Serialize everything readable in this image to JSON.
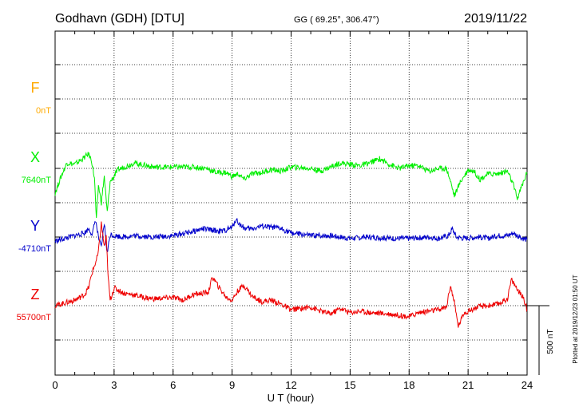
{
  "header": {
    "station": "Godhavn (GDH)  [DTU]",
    "coords": "GG ( 69.25°, 306.47°)",
    "date": "2019/11/22"
  },
  "footer": {
    "plotted": "Plotted at 2019/12/23 01:50 UT"
  },
  "chart_data": {
    "type": "line",
    "xlabel": "U T (hour)",
    "xlim": [
      0,
      24
    ],
    "xticks": [
      0,
      3,
      6,
      9,
      12,
      15,
      18,
      21,
      24
    ],
    "scale_label": "500 nT",
    "scale_nT": 500,
    "panel_height_nT": 1500,
    "grid": true,
    "series": [
      {
        "name": "F",
        "baseline_label": "0nT",
        "color": "#ffaa00",
        "x": [],
        "y": []
      },
      {
        "name": "X",
        "baseline_label": "7640nT",
        "color": "#00ee00",
        "x": [
          0,
          0.3,
          0.6,
          1.0,
          1.4,
          1.7,
          1.85,
          2.0,
          2.1,
          2.2,
          2.35,
          2.5,
          2.65,
          2.8,
          3.2,
          4.0,
          5.0,
          6.0,
          7.0,
          7.7,
          8.2,
          8.7,
          9.0,
          9.3,
          9.6,
          10.0,
          10.5,
          11.0,
          11.5,
          12.0,
          13.0,
          13.5,
          14.0,
          14.5,
          15.0,
          15.5,
          16.0,
          16.5,
          17.0,
          17.5,
          18.0,
          18.5,
          19.0,
          19.5,
          19.9,
          20.1,
          20.3,
          20.6,
          21.0,
          21.3,
          21.6,
          22.0,
          22.5,
          23.0,
          23.3,
          23.5,
          23.7,
          24.0
        ],
        "y": [
          -180,
          -60,
          40,
          30,
          70,
          105,
          60,
          -70,
          -380,
          -120,
          -250,
          -60,
          -320,
          -100,
          -10,
          40,
          10,
          10,
          10,
          0,
          -30,
          -30,
          -60,
          -40,
          -80,
          -40,
          -30,
          -10,
          -20,
          10,
          0,
          -20,
          10,
          40,
          30,
          20,
          40,
          70,
          30,
          0,
          20,
          20,
          -20,
          0,
          0,
          -90,
          -200,
          -100,
          -10,
          -20,
          -80,
          -40,
          -40,
          -20,
          -120,
          -220,
          -140,
          -30
        ]
      },
      {
        "name": "Y",
        "baseline_label": "-4710nT",
        "color": "#0000cc",
        "x": [
          0,
          0.5,
          1.0,
          1.5,
          1.7,
          1.9,
          2.05,
          2.2,
          2.35,
          2.5,
          2.65,
          2.8,
          3.0,
          3.5,
          4.0,
          5.0,
          6.0,
          7.0,
          7.5,
          8.0,
          8.5,
          9.0,
          9.2,
          9.4,
          9.7,
          10.0,
          10.5,
          11.0,
          11.5,
          12.0,
          12.5,
          13.0,
          14.0,
          15.0,
          16.0,
          17.0,
          18.0,
          19.0,
          19.5,
          20.0,
          20.2,
          20.4,
          20.8,
          21.5,
          22.0,
          22.5,
          23.0,
          23.3,
          23.6,
          24.0
        ],
        "y": [
          -30,
          -10,
          10,
          30,
          60,
          20,
          130,
          0,
          -80,
          100,
          -120,
          20,
          10,
          0,
          10,
          0,
          10,
          40,
          60,
          50,
          40,
          70,
          130,
          90,
          60,
          60,
          80,
          70,
          60,
          30,
          20,
          10,
          10,
          -10,
          0,
          -10,
          -10,
          0,
          -10,
          10,
          60,
          0,
          -10,
          0,
          -10,
          10,
          10,
          30,
          0,
          -20
        ]
      },
      {
        "name": "Z",
        "baseline_label": "55700nT",
        "color": "#ee0000",
        "x": [
          0,
          0.5,
          1.0,
          1.5,
          1.7,
          1.9,
          2.1,
          2.2,
          2.35,
          2.5,
          2.6,
          2.7,
          2.8,
          3.0,
          3.5,
          4.0,
          4.5,
          5.0,
          6.0,
          6.5,
          7.0,
          7.5,
          7.8,
          8.0,
          8.3,
          8.7,
          9.0,
          9.3,
          9.6,
          10.0,
          10.5,
          11.0,
          11.5,
          12.0,
          12.5,
          13.0,
          13.5,
          14.0,
          14.5,
          15.0,
          15.5,
          16.0,
          17.0,
          18.0,
          18.5,
          19.0,
          19.5,
          19.9,
          20.1,
          20.3,
          20.5,
          20.8,
          21.0,
          21.5,
          22.0,
          22.5,
          23.0,
          23.2,
          23.5,
          23.8,
          24.0
        ],
        "y": [
          0,
          20,
          40,
          80,
          130,
          250,
          330,
          390,
          600,
          430,
          500,
          200,
          40,
          130,
          90,
          80,
          60,
          50,
          60,
          40,
          80,
          90,
          100,
          210,
          140,
          60,
          40,
          110,
          150,
          70,
          30,
          40,
          10,
          -30,
          -20,
          -10,
          -40,
          -60,
          -20,
          -50,
          -40,
          -50,
          -60,
          -80,
          -50,
          -40,
          -30,
          -10,
          150,
          20,
          -150,
          -50,
          -40,
          -10,
          0,
          10,
          50,
          190,
          120,
          60,
          -30
        ]
      }
    ]
  }
}
